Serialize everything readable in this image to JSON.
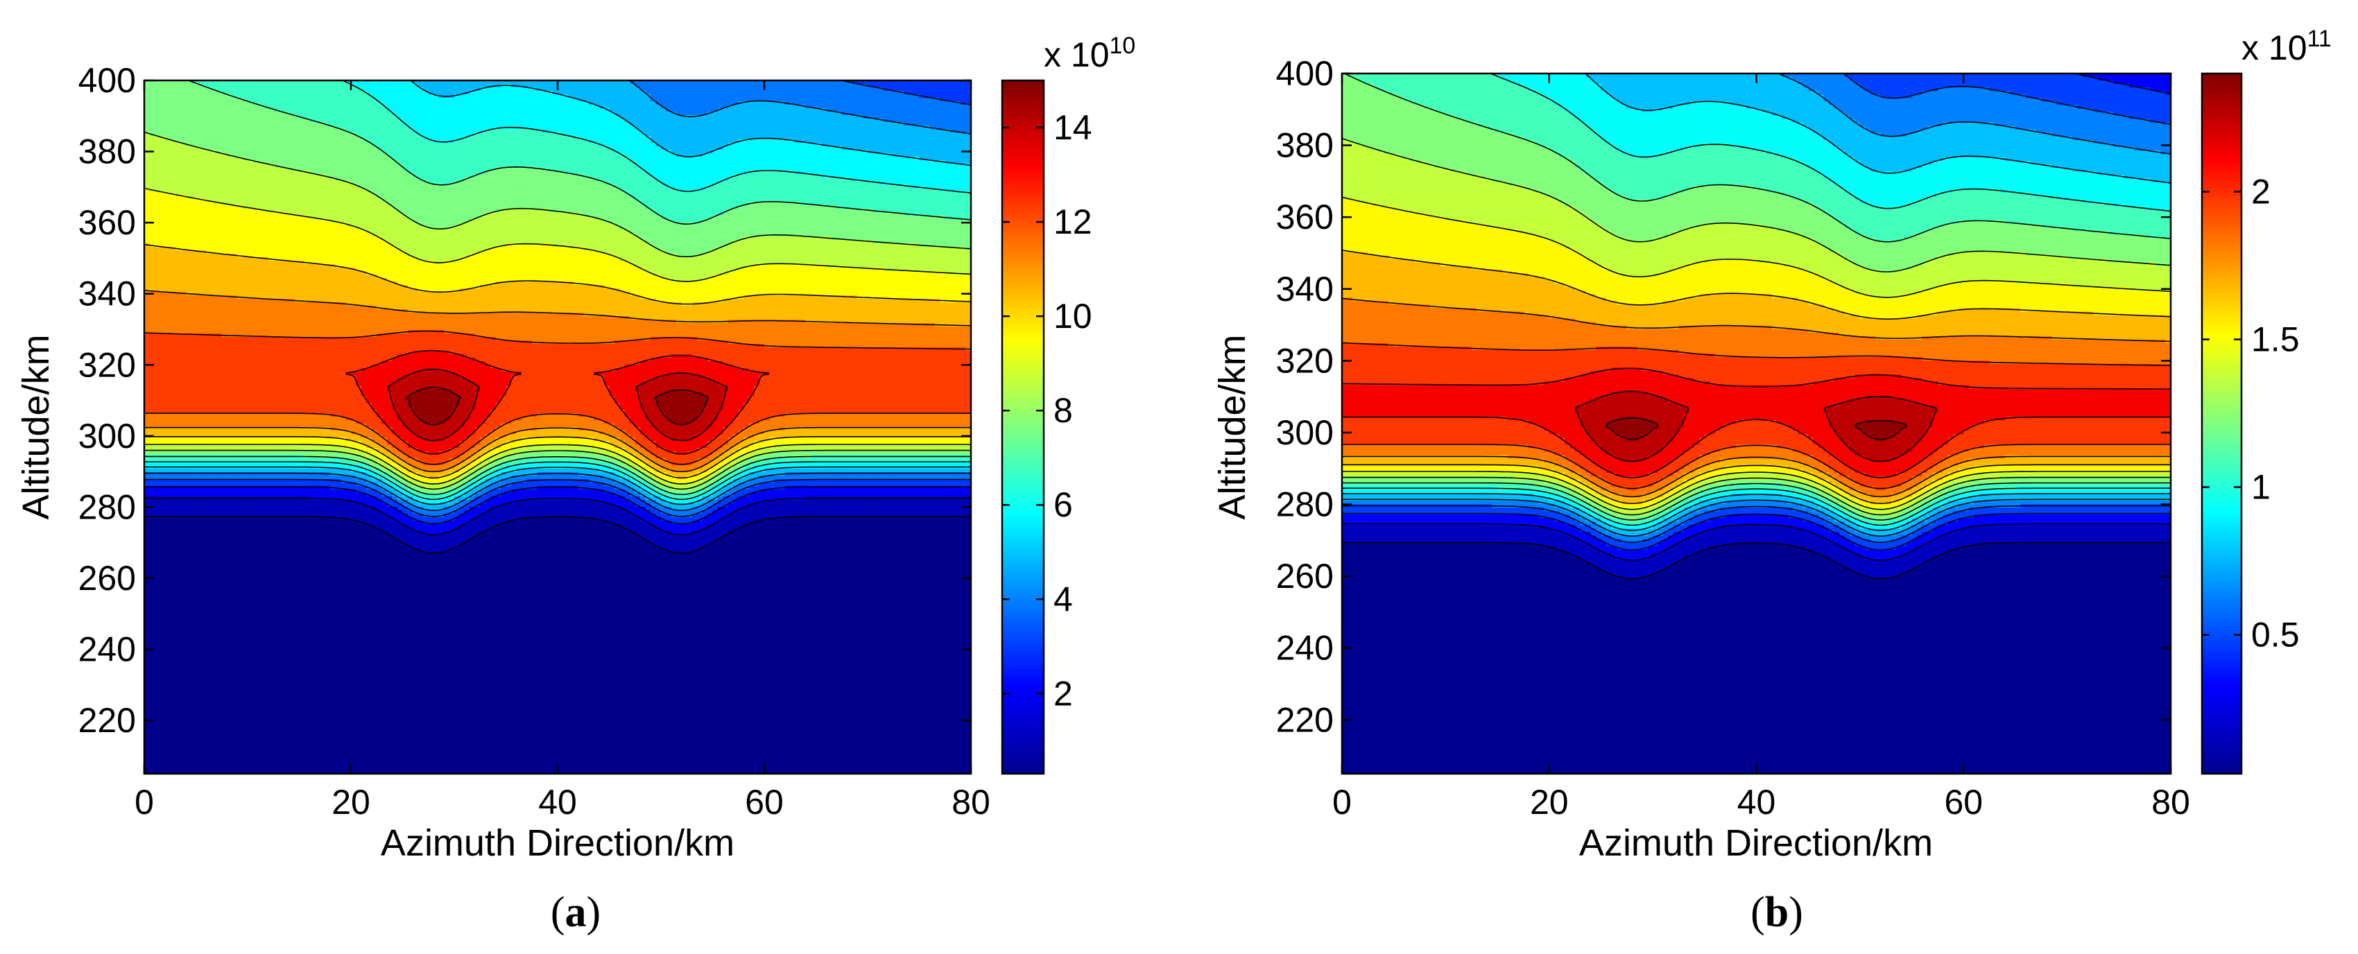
{
  "chart_data": [
    {
      "type": "contour",
      "panel_label": "(a)",
      "panel_letter": "a",
      "title": "",
      "xlabel": "Azimuth Direction/km",
      "ylabel": "Altitude/km",
      "xlim": [
        0,
        80
      ],
      "ylim": [
        205,
        400
      ],
      "xticks": [
        0,
        20,
        40,
        60,
        80
      ],
      "yticks": [
        220,
        240,
        260,
        280,
        300,
        320,
        340,
        360,
        380,
        400
      ],
      "colorbar": {
        "exponent_label": "x 10",
        "exponent": "10",
        "range": [
          0.3,
          15.0
        ],
        "ticks": [
          2,
          4,
          6,
          8,
          10,
          12,
          14
        ]
      },
      "peaks": [
        {
          "x_km": 28,
          "alt_km": 312,
          "value": 15.0
        },
        {
          "x_km": 52,
          "alt_km": 312,
          "value": 15.0
        }
      ],
      "background_peak_value": 12.7,
      "background_peak_alt_km": 318,
      "disturbance_width_km": 5,
      "contour_levels": [
        0.6,
        1.5,
        2.5,
        3.4,
        4.3,
        5.3,
        6.2,
        7.1,
        8.1,
        9.0,
        10.0,
        10.9,
        11.8,
        12.8,
        13.7,
        14.4
      ]
    },
    {
      "type": "contour",
      "panel_label": "(b)",
      "panel_letter": "b",
      "title": "",
      "xlabel": "Azimuth Direction/km",
      "ylabel": "Altitude/km",
      "xlim": [
        0,
        80
      ],
      "ylim": [
        205,
        400
      ],
      "xticks": [
        0,
        20,
        40,
        60,
        80
      ],
      "yticks": [
        220,
        240,
        260,
        280,
        300,
        320,
        340,
        360,
        380,
        400
      ],
      "colorbar": {
        "exponent_label": "x 10",
        "exponent": "11",
        "range": [
          0.03,
          2.4
        ],
        "ticks": [
          0.5,
          1,
          1.5,
          2
        ]
      },
      "peaks": [
        {
          "x_km": 28,
          "alt_km": 308,
          "value": 2.4
        },
        {
          "x_km": 52,
          "alt_km": 308,
          "value": 2.4
        }
      ],
      "background_peak_value": 2.1,
      "background_peak_alt_km": 310,
      "disturbance_width_km": 5.5,
      "contour_levels": [
        0.1,
        0.25,
        0.4,
        0.55,
        0.7,
        0.85,
        1.0,
        1.15,
        1.3,
        1.45,
        1.6,
        1.75,
        1.9,
        2.05,
        2.2,
        2.32
      ]
    }
  ]
}
